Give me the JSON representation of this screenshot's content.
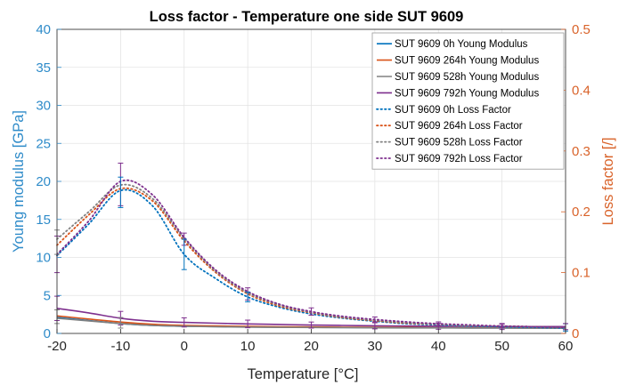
{
  "chart_data": {
    "type": "line",
    "title": "Loss factor - Temperature one side SUT 9609",
    "xlabel": "Temperature [°C]",
    "ylabel": "Young modulus [GPa]",
    "y2label": "Loss factor [/]",
    "xlim": [
      -20,
      60
    ],
    "ylim": [
      0,
      40
    ],
    "y2lim": [
      0,
      0.5
    ],
    "xticks": [
      "-20",
      "-10",
      "0",
      "10",
      "20",
      "30",
      "40",
      "50",
      "60"
    ],
    "yticks": [
      "0",
      "5",
      "10",
      "15",
      "20",
      "25",
      "30",
      "35",
      "40"
    ],
    "y2ticks": [
      "0",
      "0.1",
      "0.2",
      "0.3",
      "0.4",
      "0.5"
    ],
    "grid": true,
    "legend_position": "top-right",
    "colors": {
      "left_axis": "#2e8bc9",
      "right_axis": "#d9632a"
    },
    "x": [
      -20,
      -15,
      -10,
      -5,
      0,
      5,
      10,
      15,
      20,
      25,
      30,
      35,
      40,
      45,
      50,
      55,
      60
    ],
    "series": [
      {
        "name": "SUT 9609 0h Young Modulus",
        "axis": "left",
        "style": "solid",
        "color": "#0072BD",
        "values": [
          2.1,
          1.7,
          1.3,
          1.05,
          0.95,
          0.9,
          0.85,
          0.82,
          0.8,
          0.78,
          0.76,
          0.75,
          0.74,
          0.73,
          0.72,
          0.71,
          0.7
        ]
      },
      {
        "name": "SUT 9609 264h Young Modulus",
        "axis": "left",
        "style": "solid",
        "color": "#D95319",
        "values": [
          2.3,
          1.9,
          1.5,
          1.2,
          1.05,
          0.98,
          0.92,
          0.88,
          0.85,
          0.82,
          0.8,
          0.78,
          0.76,
          0.75,
          0.74,
          0.73,
          0.72
        ]
      },
      {
        "name": "SUT 9609 528h Young Modulus",
        "axis": "left",
        "style": "solid",
        "color": "#808080",
        "values": [
          2.0,
          1.65,
          1.3,
          1.05,
          0.95,
          0.88,
          0.83,
          0.8,
          0.78,
          0.76,
          0.74,
          0.73,
          0.72,
          0.71,
          0.7,
          0.69,
          0.68
        ]
      },
      {
        "name": "SUT 9609 792h Young Modulus",
        "axis": "left",
        "style": "solid",
        "color": "#7E2F8E",
        "values": [
          3.3,
          2.7,
          2.0,
          1.6,
          1.45,
          1.35,
          1.25,
          1.18,
          1.1,
          1.05,
          1.0,
          0.97,
          0.95,
          0.93,
          0.91,
          0.9,
          0.9
        ]
      },
      {
        "name": "SUT 9609 0h Loss Factor",
        "axis": "right",
        "style": "dotted",
        "color": "#0072BD",
        "values": [
          0.128,
          0.18,
          0.235,
          0.21,
          0.13,
          0.09,
          0.06,
          0.043,
          0.032,
          0.025,
          0.02,
          0.016,
          0.014,
          0.012,
          0.011,
          0.01,
          0.009
        ]
      },
      {
        "name": "SUT 9609 264h Loss Factor",
        "axis": "right",
        "style": "dotted",
        "color": "#D95319",
        "values": [
          0.145,
          0.195,
          0.238,
          0.218,
          0.152,
          0.1,
          0.065,
          0.045,
          0.034,
          0.026,
          0.021,
          0.017,
          0.015,
          0.013,
          0.012,
          0.011,
          0.01
        ]
      },
      {
        "name": "SUT 9609 528h Loss Factor",
        "axis": "right",
        "style": "dotted",
        "color": "#808080",
        "values": [
          0.155,
          0.2,
          0.244,
          0.222,
          0.156,
          0.102,
          0.067,
          0.047,
          0.035,
          0.027,
          0.022,
          0.018,
          0.015,
          0.013,
          0.012,
          0.011,
          0.01
        ]
      },
      {
        "name": "SUT 9609 792h Loss Factor",
        "axis": "right",
        "style": "dotted",
        "color": "#7E2F8E",
        "values": [
          0.13,
          0.185,
          0.25,
          0.228,
          0.158,
          0.104,
          0.069,
          0.048,
          0.036,
          0.028,
          0.023,
          0.019,
          0.016,
          0.014,
          0.012,
          0.011,
          0.01
        ]
      }
    ],
    "error_bars": [
      {
        "axis": "right",
        "x": -20,
        "y": 0.13,
        "err": 0.03,
        "color": "#7E2F8E"
      },
      {
        "axis": "right",
        "x": -20,
        "y": 0.15,
        "err": 0.02,
        "color": "#808080"
      },
      {
        "axis": "right",
        "x": -10,
        "y": 0.245,
        "err": 0.035,
        "color": "#7E2F8E"
      },
      {
        "axis": "right",
        "x": -10,
        "y": 0.232,
        "err": 0.025,
        "color": "#0072BD"
      },
      {
        "axis": "right",
        "x": 0,
        "y": 0.155,
        "err": 0.01,
        "color": "#7E2F8E"
      },
      {
        "axis": "right",
        "x": 0,
        "y": 0.13,
        "err": 0.025,
        "color": "#0072BD"
      },
      {
        "axis": "right",
        "x": 10,
        "y": 0.065,
        "err": 0.01,
        "color": "#7E2F8E"
      },
      {
        "axis": "right",
        "x": 10,
        "y": 0.06,
        "err": 0.008,
        "color": "#0072BD"
      },
      {
        "axis": "right",
        "x": 20,
        "y": 0.036,
        "err": 0.006,
        "color": "#7E2F8E"
      },
      {
        "axis": "right",
        "x": 30,
        "y": 0.023,
        "err": 0.004,
        "color": "#7E2F8E"
      },
      {
        "axis": "right",
        "x": 40,
        "y": 0.016,
        "err": 0.003,
        "color": "#7E2F8E"
      },
      {
        "axis": "right",
        "x": 50,
        "y": 0.012,
        "err": 0.003,
        "color": "#7E2F8E"
      },
      {
        "axis": "right",
        "x": 60,
        "y": 0.01,
        "err": 0.006,
        "color": "#0072BD"
      },
      {
        "axis": "left",
        "x": -20,
        "y": 3.3,
        "err": 1.6,
        "color": "#7E2F8E"
      },
      {
        "axis": "left",
        "x": -20,
        "y": 2.2,
        "err": 0.9,
        "color": "#808080"
      },
      {
        "axis": "left",
        "x": -10,
        "y": 2.0,
        "err": 0.9,
        "color": "#7E2F8E"
      },
      {
        "axis": "left",
        "x": -10,
        "y": 1.4,
        "err": 0.7,
        "color": "#808080"
      },
      {
        "axis": "left",
        "x": 0,
        "y": 1.45,
        "err": 0.6,
        "color": "#7E2F8E"
      },
      {
        "axis": "left",
        "x": 10,
        "y": 1.25,
        "err": 0.5,
        "color": "#7E2F8E"
      },
      {
        "axis": "left",
        "x": 20,
        "y": 1.1,
        "err": 0.4,
        "color": "#7E2F8E"
      },
      {
        "axis": "left",
        "x": 30,
        "y": 1.0,
        "err": 0.4,
        "color": "#7E2F8E"
      },
      {
        "axis": "left",
        "x": 40,
        "y": 0.95,
        "err": 0.4,
        "color": "#7E2F8E"
      },
      {
        "axis": "left",
        "x": 50,
        "y": 0.91,
        "err": 0.4,
        "color": "#7E2F8E"
      },
      {
        "axis": "left",
        "x": 60,
        "y": 0.9,
        "err": 0.4,
        "color": "#7E2F8E"
      }
    ]
  }
}
